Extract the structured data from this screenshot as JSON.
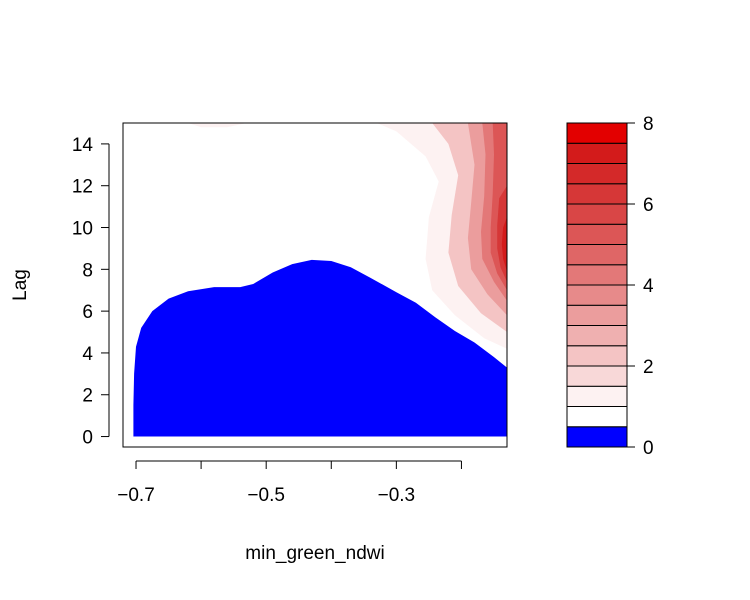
{
  "chart_data": {
    "type": "heatmap",
    "subtype": "filled-contour",
    "title": "",
    "xlabel": "min_green_ndwi",
    "ylabel": "Lag",
    "xlim": [
      -0.72,
      -0.13
    ],
    "ylim": [
      -0.5,
      15.0
    ],
    "x_ticks": [
      -0.7,
      -0.6,
      -0.5,
      -0.4,
      -0.3,
      -0.2
    ],
    "x_tick_labels": [
      "−0.7",
      "",
      "−0.5",
      "",
      "−0.3",
      ""
    ],
    "y_ticks": [
      0,
      2,
      4,
      6,
      8,
      10,
      12,
      14
    ],
    "y_tick_labels": [
      "0",
      "2",
      "4",
      "6",
      "8",
      "10",
      "12",
      "14"
    ],
    "grid": false,
    "legend_placement": "right",
    "colorbar": {
      "range": [
        0,
        8
      ],
      "ticks": [
        0,
        2,
        4,
        6,
        8
      ],
      "tick_labels": [
        "0",
        "2",
        "4",
        "6",
        "8"
      ],
      "levels": [
        0,
        0.5,
        1,
        1.5,
        2,
        2.5,
        3,
        3.5,
        4,
        4.5,
        5,
        5.5,
        6,
        6.5,
        7,
        7.5,
        8
      ],
      "colors": [
        "#0000ff",
        "#ffffff",
        "#fdf2f2",
        "#f8d8d8",
        "#f4c4c4",
        "#efb0b0",
        "#eb9d9d",
        "#e78a8a",
        "#e37878",
        "#df6666",
        "#dc5656",
        "#d94646",
        "#d63737",
        "#d42929",
        "#d31b1b",
        "#e30000"
      ]
    },
    "regions": {
      "low_region": {
        "description_value": "below 0.5",
        "color": "#0000ff",
        "boundary": [
          [
            -0.704,
            0
          ],
          [
            -0.704,
            1.5
          ],
          [
            -0.703,
            3.0
          ],
          [
            -0.7,
            4.3
          ],
          [
            -0.692,
            5.2
          ],
          [
            -0.675,
            6.0
          ],
          [
            -0.65,
            6.6
          ],
          [
            -0.62,
            6.95
          ],
          [
            -0.58,
            7.15
          ],
          [
            -0.54,
            7.15
          ],
          [
            -0.52,
            7.3
          ],
          [
            -0.49,
            7.85
          ],
          [
            -0.46,
            8.25
          ],
          [
            -0.43,
            8.45
          ],
          [
            -0.4,
            8.4
          ],
          [
            -0.37,
            8.1
          ],
          [
            -0.34,
            7.6
          ],
          [
            -0.3,
            6.9
          ],
          [
            -0.27,
            6.4
          ],
          [
            -0.24,
            5.7
          ],
          [
            -0.21,
            5.05
          ],
          [
            -0.18,
            4.5
          ],
          [
            -0.15,
            3.8
          ],
          [
            -0.13,
            3.3
          ],
          [
            -0.13,
            0
          ],
          [
            -0.7,
            0
          ]
        ]
      },
      "high_region": {
        "description_value": "rising to about 8 near min_green_ndwi -0.13, Lag 9",
        "peak": {
          "x": -0.13,
          "y": 9.0,
          "value": 7.9
        },
        "contours": [
          {
            "level": 1.0,
            "points": [
              [
                -0.13,
                4.2
              ],
              [
                -0.165,
                4.7
              ],
              [
                -0.21,
                5.8
              ],
              [
                -0.245,
                7.0
              ],
              [
                -0.255,
                8.5
              ],
              [
                -0.25,
                10.5
              ],
              [
                -0.235,
                12.2
              ],
              [
                -0.255,
                13.4
              ],
              [
                -0.3,
                14.6
              ],
              [
                -0.33,
                15.0
              ],
              [
                -0.13,
                15.0
              ]
            ]
          },
          {
            "level": 2.0,
            "points": [
              [
                -0.13,
                5.0
              ],
              [
                -0.17,
                5.9
              ],
              [
                -0.205,
                7.2
              ],
              [
                -0.22,
                8.8
              ],
              [
                -0.215,
                10.6
              ],
              [
                -0.205,
                12.5
              ],
              [
                -0.22,
                14.0
              ],
              [
                -0.245,
                15.0
              ],
              [
                -0.13,
                15.0
              ]
            ]
          },
          {
            "level": 3.0,
            "points": [
              [
                -0.13,
                5.8
              ],
              [
                -0.16,
                6.8
              ],
              [
                -0.185,
                8.0
              ],
              [
                -0.19,
                9.5
              ],
              [
                -0.185,
                11.2
              ],
              [
                -0.18,
                13.0
              ],
              [
                -0.19,
                15.0
              ],
              [
                -0.13,
                15.0
              ]
            ]
          },
          {
            "level": 4.0,
            "points": [
              [
                -0.13,
                6.5
              ],
              [
                -0.15,
                7.4
              ],
              [
                -0.168,
                8.5
              ],
              [
                -0.17,
                9.8
              ],
              [
                -0.165,
                11.5
              ],
              [
                -0.163,
                13.5
              ],
              [
                -0.168,
                15.0
              ],
              [
                -0.13,
                15.0
              ]
            ]
          },
          {
            "level": 5.0,
            "points": [
              [
                -0.13,
                7.0
              ],
              [
                -0.145,
                7.8
              ],
              [
                -0.155,
                8.8
              ],
              [
                -0.155,
                10.0
              ],
              [
                -0.152,
                11.6
              ],
              [
                -0.15,
                13.5
              ],
              [
                -0.152,
                15.0
              ],
              [
                -0.13,
                15.0
              ]
            ]
          },
          {
            "level": 6.0,
            "points": [
              [
                -0.13,
                7.4
              ],
              [
                -0.14,
                8.1
              ],
              [
                -0.145,
                9.0
              ],
              [
                -0.145,
                10.1
              ],
              [
                -0.142,
                11.4
              ],
              [
                -0.13,
                12.0
              ]
            ]
          },
          {
            "level": 7.0,
            "points": [
              [
                -0.13,
                7.9
              ],
              [
                -0.136,
                8.5
              ],
              [
                -0.138,
                9.2
              ],
              [
                -0.136,
                10.0
              ],
              [
                -0.13,
                10.5
              ]
            ]
          }
        ],
        "top_edge_faint": [
          [
            -0.62,
            15.0
          ],
          [
            -0.6,
            14.8
          ],
          [
            -0.56,
            14.8
          ],
          [
            -0.53,
            15.0
          ]
        ]
      }
    }
  }
}
